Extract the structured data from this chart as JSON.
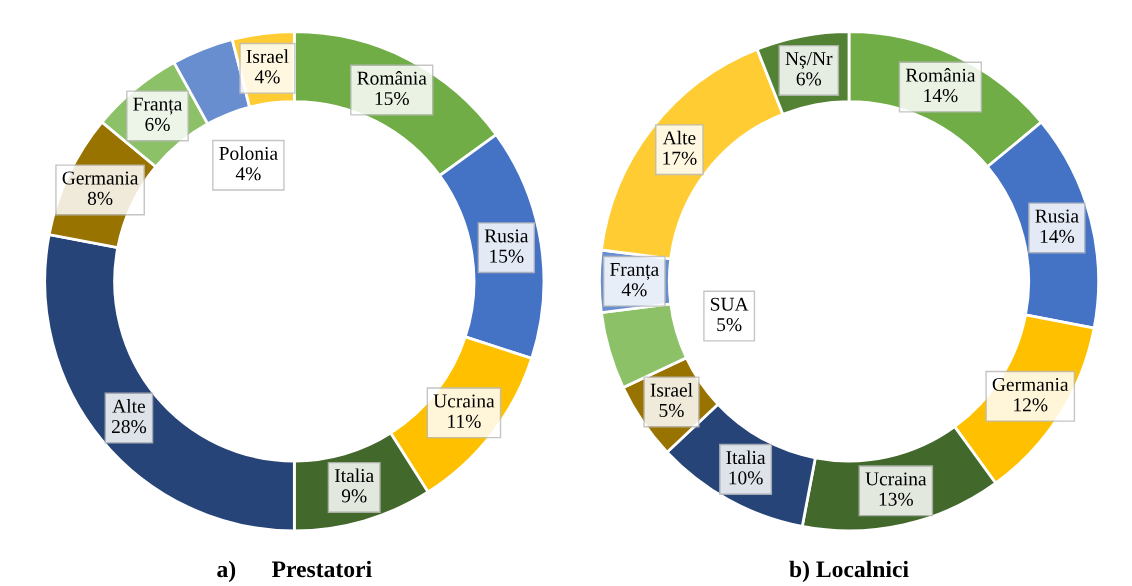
{
  "chart_data": [
    {
      "type": "donut",
      "title": "a)      Prestatori",
      "categories": [
        "România",
        "Rusia",
        "Ucraina",
        "Italia",
        "Alte",
        "Germania",
        "Franța",
        "Polonia",
        "Israel"
      ],
      "values": [
        15,
        15,
        11,
        9,
        28,
        8,
        6,
        4,
        4
      ],
      "value_labels": [
        "15%",
        "15%",
        "11%",
        "9%",
        "28%",
        "8%",
        "6%",
        "4%",
        "4%"
      ],
      "colors": [
        "#70ad47",
        "#4472c4",
        "#ffc000",
        "#43682b",
        "#264478",
        "#997300",
        "#8cc168",
        "#698ed0",
        "#ffcd33"
      ]
    },
    {
      "type": "donut",
      "title": "b) Localnici",
      "categories": [
        "România",
        "Rusia",
        "Germania",
        "Ucraina",
        "Italia",
        "Israel",
        "SUA",
        "Franța",
        "Alte",
        "Nș/Nr"
      ],
      "values": [
        14,
        14,
        12,
        13,
        10,
        5,
        5,
        4,
        17,
        6
      ],
      "value_labels": [
        "14%",
        "14%",
        "12%",
        "13%",
        "10%",
        "5%",
        "5%",
        "4%",
        "17%",
        "6%"
      ],
      "colors": [
        "#70ad47",
        "#4472c4",
        "#ffc000",
        "#43682b",
        "#264478",
        "#997300",
        "#8cc168",
        "#698ed0",
        "#ffcd33",
        "#548235"
      ]
    }
  ]
}
